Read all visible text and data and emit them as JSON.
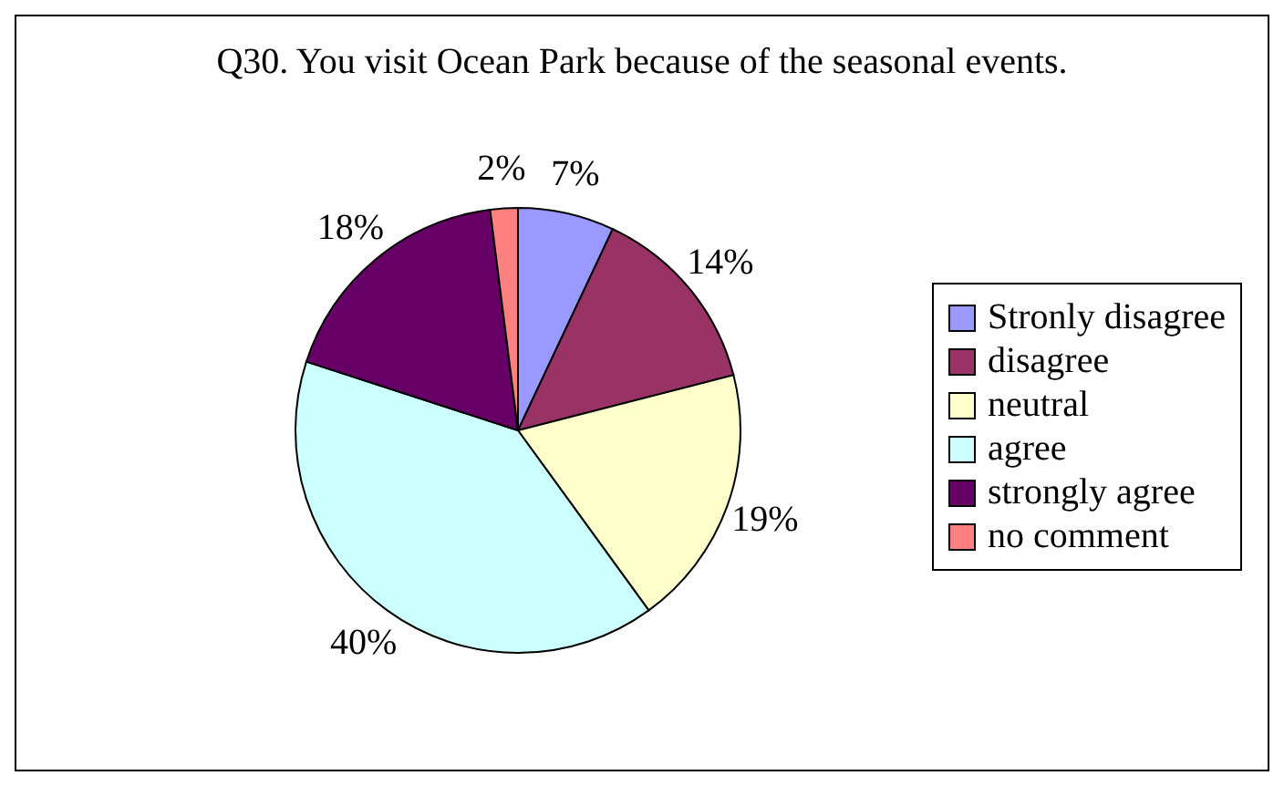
{
  "chart_data": {
    "type": "pie",
    "title": "Q30. You visit Ocean Park because of the seasonal events.",
    "categories": [
      "Stronly disagree",
      "disagree",
      "neutral",
      "agree",
      "strongly agree",
      "no comment"
    ],
    "values": [
      7,
      14,
      19,
      40,
      18,
      2
    ],
    "value_labels": [
      "7%",
      "14%",
      "19%",
      "40%",
      "18%",
      "2%"
    ],
    "colors": [
      "#9999ff",
      "#993366",
      "#ffffcc",
      "#ccffff",
      "#660066",
      "#ff8080"
    ],
    "legend": "right"
  }
}
